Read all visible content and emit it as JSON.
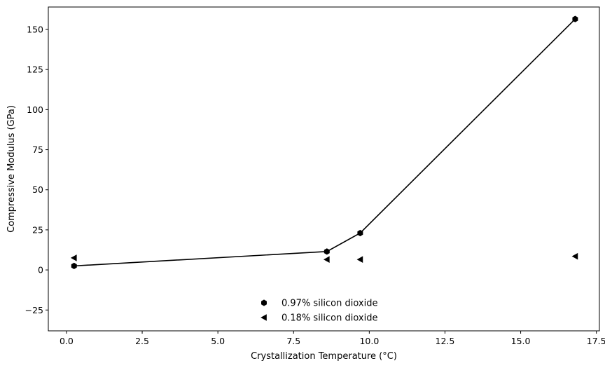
{
  "chart_data": {
    "type": "scatter",
    "title": "",
    "xlabel": "Crystallization Temperature (°C)",
    "ylabel": "Compressive Modulus (GPa)",
    "xlim": [
      -0.6,
      17.6
    ],
    "ylim": [
      -38,
      164
    ],
    "x_ticks": [
      0.0,
      2.5,
      5.0,
      7.5,
      10.0,
      12.5,
      15.0,
      17.5
    ],
    "x_tick_labels": [
      "0.0",
      "2.5",
      "5.0",
      "7.5",
      "10.0",
      "12.5",
      "15.0",
      "17.5"
    ],
    "y_ticks": [
      -25,
      0,
      25,
      50,
      75,
      100,
      125,
      150
    ],
    "y_tick_labels": [
      "−25",
      "0",
      "25",
      "50",
      "75",
      "100",
      "125",
      "150"
    ],
    "grid": false,
    "legend_position": "bottom-center",
    "series": [
      {
        "name": "0.97% silicon dioxide",
        "marker": "hexagon",
        "line": true,
        "color": "#000000",
        "x": [
          0.25,
          8.6,
          9.7,
          16.8
        ],
        "y": [
          2.5,
          11.5,
          23.0,
          156.5
        ]
      },
      {
        "name": "0.18% silicon dioxide",
        "marker": "triangle-left",
        "line": false,
        "color": "#000000",
        "x": [
          0.25,
          8.6,
          9.7,
          16.8
        ],
        "y": [
          7.5,
          6.5,
          6.5,
          8.5
        ]
      }
    ]
  }
}
